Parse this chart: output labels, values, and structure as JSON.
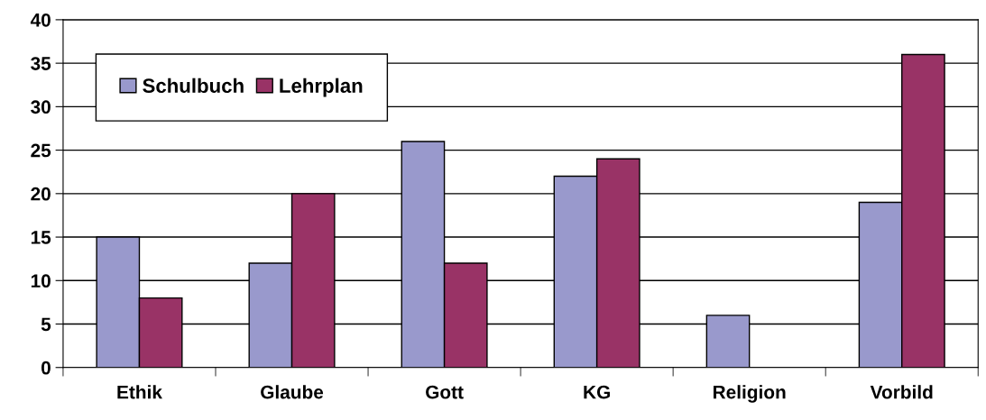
{
  "chart_data": {
    "type": "bar",
    "categories": [
      "Ethik",
      "Glaube",
      "Gott",
      "KG",
      "Religion",
      "Vorbild"
    ],
    "series": [
      {
        "name": "Schulbuch",
        "color": "#9999cc",
        "values": [
          15,
          12,
          26,
          22,
          6,
          19
        ]
      },
      {
        "name": "Lehrplan",
        "color": "#993366",
        "values": [
          8,
          20,
          12,
          24,
          null,
          36
        ]
      }
    ],
    "ylim": [
      0,
      40
    ],
    "yticks": [
      0,
      5,
      10,
      15,
      20,
      25,
      30,
      35,
      40
    ],
    "grid": "y",
    "legend": "top left"
  }
}
